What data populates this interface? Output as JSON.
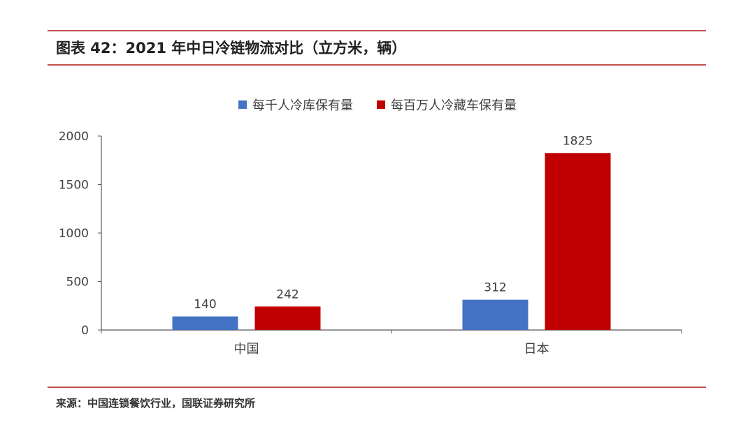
{
  "header": {
    "title": "图表 42：2021 年中日冷链物流对比（立方米，辆）"
  },
  "footer": {
    "source": "来源：中国连锁餐饮行业，国联证券研究所"
  },
  "colors": {
    "rule": "#c0504d",
    "series_1": "#4472c4",
    "series_2": "#c00000",
    "axis": "#595959"
  },
  "chart_data": {
    "type": "bar",
    "title": "",
    "xlabel": "",
    "ylabel": "",
    "categories": [
      "中国",
      "日本"
    ],
    "series": [
      {
        "name": "每千人冷库保有量",
        "values": [
          140,
          312
        ],
        "color": "#4472c4"
      },
      {
        "name": "每百万人冷藏车保有量",
        "values": [
          242,
          1825
        ],
        "color": "#c00000"
      }
    ],
    "ylim": [
      0,
      2000
    ],
    "yticks": [
      0,
      500,
      1000,
      1500,
      2000
    ],
    "data_labels": true,
    "grid": false,
    "legend": "top-center"
  }
}
